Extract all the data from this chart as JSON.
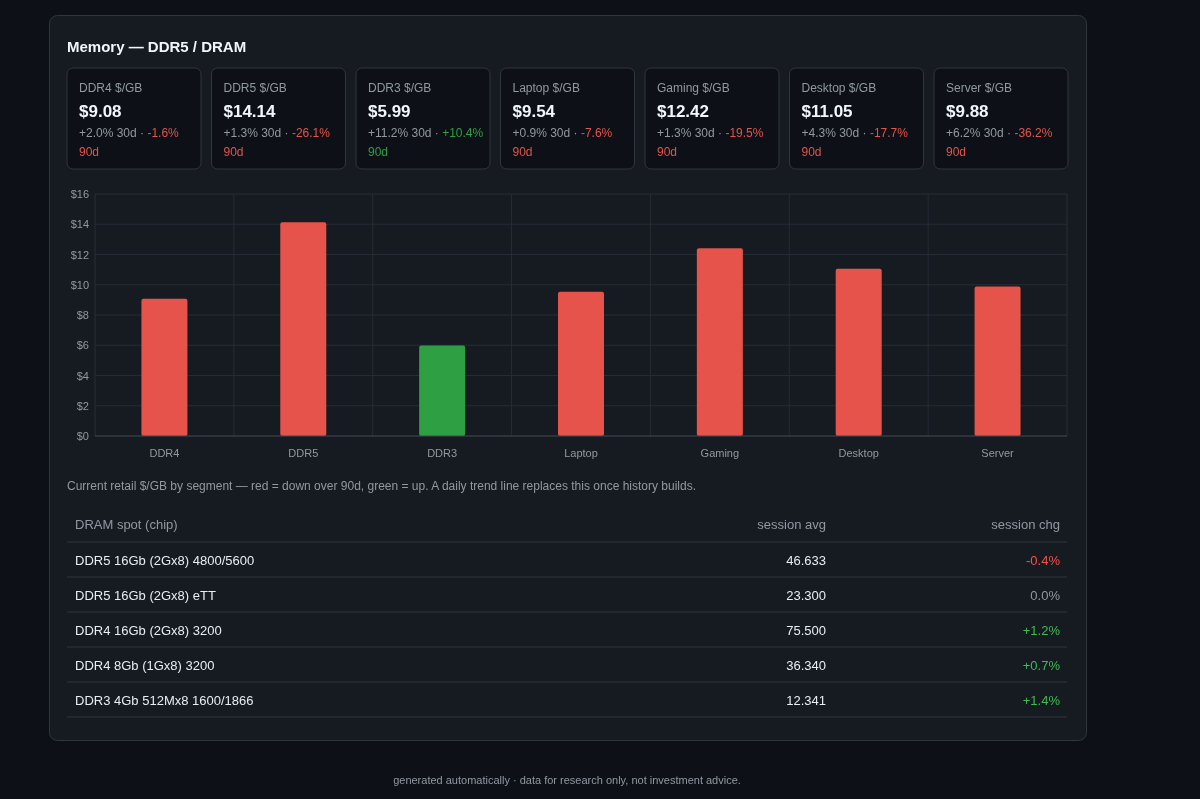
{
  "chart_data": [
    {
      "type": "other",
      "title": "Memory — DDR5 / DRAM",
      "categories": [
        "DDR4 $/GB",
        "DDR5 $/GB",
        "DDR3 $/GB",
        "Laptop $/GB",
        "Gaming $/GB",
        "Desktop $/GB",
        "Server $/GB"
      ],
      "values": [
        9.08,
        14.14,
        5.99,
        9.54,
        12.42,
        11.05,
        9.88
      ],
      "value_labels": [
        "$9.08",
        "$14.14",
        "$5.99",
        "$9.54",
        "$12.42",
        "$11.05",
        "$9.88"
      ],
      "annotations": [
        "+2.0% 30d ·",
        "-1.6% 90d",
        "+1.3% 30d ·",
        "-26.1% 90d",
        "+11.2% 30d ·",
        "+10.4% 90d",
        "+0.9% 30d ·",
        "-7.6% 90d",
        "+1.3% 30d ·",
        "-19.5% 90d",
        "+4.3% 30d ·",
        "-17.7% 90d",
        "+6.2% 30d ·",
        "-36.2% 90d"
      ]
    },
    {
      "type": "bar",
      "categories": [
        "DDR4",
        "DDR5",
        "DDR3",
        "Laptop",
        "Gaming",
        "Desktop",
        "Server"
      ],
      "values": [
        9.08,
        14.14,
        5.99,
        9.54,
        12.42,
        11.05,
        9.88
      ],
      "colors": [
        "#e5534b",
        "#e5534b",
        "#2ea043",
        "#e5534b",
        "#e5534b",
        "#e5534b",
        "#e5534b"
      ],
      "ylim": [
        0,
        16
      ],
      "yticks": [
        {
          "value": 0,
          "label": "$0"
        },
        {
          "value": 2,
          "label": "$2"
        },
        {
          "value": 4,
          "label": "$4"
        },
        {
          "value": 6,
          "label": "$6"
        },
        {
          "value": 8,
          "label": "$8"
        },
        {
          "value": 10,
          "label": "$10"
        },
        {
          "value": 12,
          "label": "$12"
        },
        {
          "value": 14,
          "label": "$14"
        },
        {
          "value": 16,
          "label": "$16"
        }
      ],
      "grid": true,
      "annotations": [
        "Current retail $/GB by segment — red = down over 90d, green = up. A daily trend line replaces this once history builds."
      ]
    },
    {
      "type": "other",
      "colors": [
        "#f85149",
        "#9198a1",
        "#3fb950",
        "#3fb950",
        "#3fb950"
      ],
      "annotations": [
        "DRAM spot (chip)",
        "session avg",
        "session chg",
        "DDR5 16Gb (2Gx8) 4800/5600",
        "46.633",
        "-0.4%",
        "DDR5 16Gb (2Gx8) eTT",
        "23.300",
        "0.0%",
        "DDR4 16Gb (2Gx8) 3200",
        "75.500",
        "+1.2%",
        "DDR4 8Gb (1Gx8) 3200",
        "36.340",
        "+0.7%",
        "DDR3 4Gb 512Mx8 1600/1866",
        "12.341",
        "+1.4%",
        "generated automatically · data for research only, not investment advice."
      ]
    }
  ]
}
